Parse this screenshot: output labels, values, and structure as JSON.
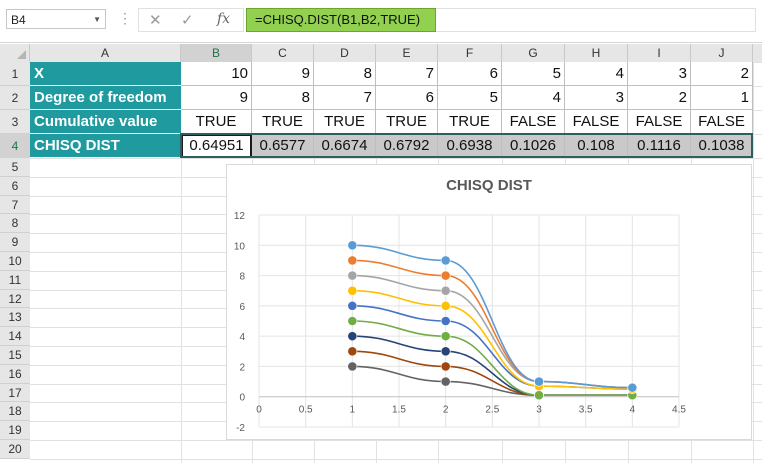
{
  "name_box": "B4",
  "formula": "=CHISQ.DIST(B1,B2,TRUE)",
  "formula_icons": [
    "cancel-icon",
    "enter-icon",
    "function-icon"
  ],
  "columns": [
    "A",
    "B",
    "C",
    "D",
    "E",
    "F",
    "G",
    "H",
    "I",
    "J"
  ],
  "rows": [
    "1",
    "2",
    "3",
    "4",
    "5",
    "6",
    "7",
    "8",
    "9",
    "10",
    "11",
    "12",
    "13",
    "14",
    "15",
    "16",
    "17",
    "18",
    "19",
    "20"
  ],
  "table": [
    {
      "label": "X",
      "values": [
        "10",
        "9",
        "8",
        "7",
        "6",
        "5",
        "4",
        "3",
        "2"
      ]
    },
    {
      "label": "Degree of freedom",
      "values": [
        "9",
        "8",
        "7",
        "6",
        "5",
        "4",
        "3",
        "2",
        "1"
      ]
    },
    {
      "label": "Cumulative value",
      "values": [
        "TRUE",
        "TRUE",
        "TRUE",
        "TRUE",
        "TRUE",
        "FALSE",
        "FALSE",
        "FALSE",
        "FALSE"
      ]
    },
    {
      "label": "CHISQ DIST",
      "values": [
        "0.64951",
        "0.6577",
        "0.6674",
        "0.6792",
        "0.6938",
        "0.1026",
        "0.108",
        "0.1116",
        "0.1038"
      ]
    }
  ],
  "colors": {
    "label_bg": "#1f9ba0",
    "formula_bg": "#92d050",
    "selected_row": "#c9c9c9"
  },
  "chart_data": {
    "type": "scatter",
    "title": "CHISQ DIST",
    "xlim": [
      0,
      4.5
    ],
    "ylim": [
      -2,
      12
    ],
    "x_ticks": [
      "0",
      "0.5",
      "1",
      "1.5",
      "2",
      "2.5",
      "3",
      "3.5",
      "4",
      "4.5"
    ],
    "y_ticks": [
      "-2",
      "0",
      "2",
      "4",
      "6",
      "8",
      "10",
      "12"
    ],
    "x": [
      1,
      2,
      3,
      4
    ],
    "grid": true,
    "series": [
      {
        "values": [
          10,
          9,
          1,
          0.6
        ],
        "color": "#5b9bd5"
      },
      {
        "values": [
          9,
          8,
          1,
          0.6
        ],
        "color": "#ed7d31"
      },
      {
        "values": [
          8,
          7,
          1,
          0.6
        ],
        "color": "#a5a5a5"
      },
      {
        "values": [
          7,
          6,
          0.7,
          0.5
        ],
        "color": "#ffc000"
      },
      {
        "values": [
          6,
          5,
          0.7,
          0.5
        ],
        "color": "#4472c4"
      },
      {
        "values": [
          5,
          4,
          0.1,
          0.1
        ],
        "color": "#70ad47"
      },
      {
        "values": [
          4,
          3,
          0.1,
          0.1
        ],
        "color": "#264478"
      },
      {
        "values": [
          3,
          2,
          0.1,
          0.1
        ],
        "color": "#9e480e"
      },
      {
        "values": [
          2,
          1,
          0.1,
          0.1
        ],
        "color": "#636363"
      }
    ]
  }
}
